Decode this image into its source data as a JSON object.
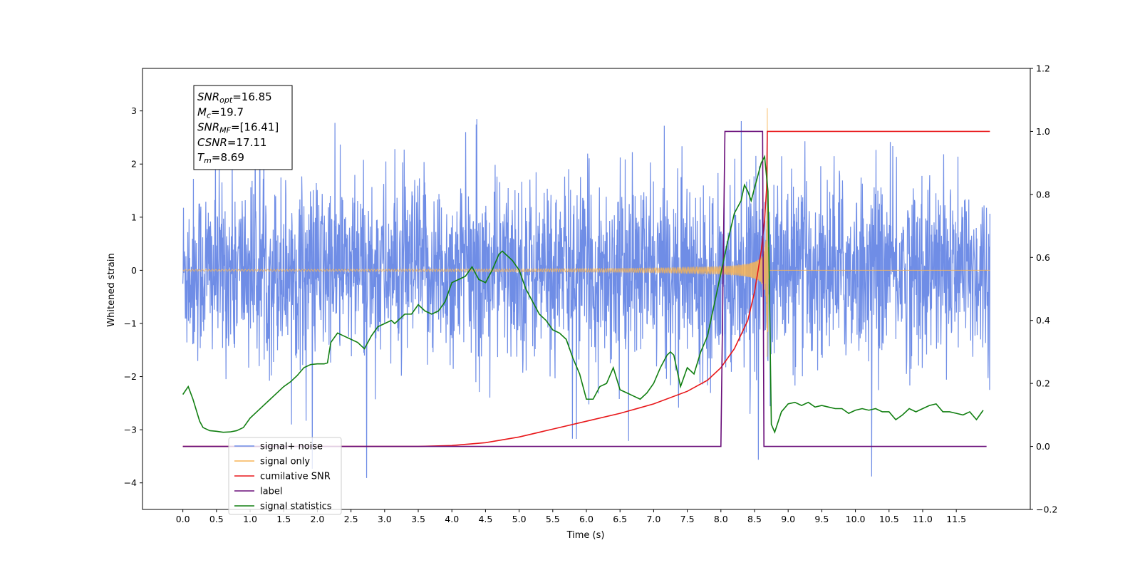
{
  "chart_data": {
    "type": "line",
    "xlabel": "Time (s)",
    "ylabel": "Whitened strain",
    "xlim": [
      -0.6,
      12.6
    ],
    "ylim": [
      -4.5,
      3.8
    ],
    "y2lim": [
      -0.2,
      1.2
    ],
    "x_ticks": [
      "0.0",
      "0.5",
      "1.0",
      "1.5",
      "2.0",
      "2.5",
      "3.0",
      "3.5",
      "4.0",
      "4.5",
      "5.0",
      "5.5",
      "6.0",
      "6.5",
      "7.0",
      "7.5",
      "8.0",
      "8.5",
      "9.0",
      "9.5",
      "10.0",
      "10.5",
      "11.0",
      "11.5"
    ],
    "y_ticks": [
      "3",
      "2",
      "1",
      "0",
      "−1",
      "−2",
      "−3",
      "−4"
    ],
    "y2_ticks": [
      "1.2",
      "1.0",
      "0.8",
      "0.6",
      "0.4",
      "0.2",
      "0.0",
      "−0.2"
    ],
    "legend_position": "lower-left",
    "annotation": [
      {
        "base": "SNR",
        "sub": "opt",
        "value": "=16.85"
      },
      {
        "base": "M",
        "sub": "c",
        "value": "=19.7"
      },
      {
        "base": "SNR",
        "sub": "MF",
        "value": "=[16.41]"
      },
      {
        "base": "CSNR",
        "sub": "",
        "value": "=17.11"
      },
      {
        "base": "T",
        "sub": "m",
        "value": "=8.69"
      }
    ],
    "series": [
      {
        "name": "signal+ noise",
        "color": "#6f8de6",
        "axis": "left",
        "kind": "noise",
        "noise_sigma": 0.85,
        "t_range": [
          0,
          12
        ]
      },
      {
        "name": "signal only",
        "color": "#f7b455",
        "axis": "left",
        "kind": "chirp",
        "merger_time": 8.69,
        "peak_amplitude": 3.05
      },
      {
        "name": "cumilative SNR",
        "color": "#e8171a",
        "axis": "right",
        "x": [
          0,
          3.5,
          4.0,
          4.5,
          5.0,
          5.5,
          6.0,
          6.5,
          7.0,
          7.5,
          7.8,
          8.0,
          8.2,
          8.4,
          8.5,
          8.6,
          8.65,
          8.68,
          8.69,
          8.7,
          12
        ],
        "values": [
          0,
          0,
          0.003,
          0.012,
          0.03,
          0.055,
          0.08,
          0.105,
          0.135,
          0.175,
          0.21,
          0.25,
          0.31,
          0.4,
          0.49,
          0.62,
          0.72,
          0.82,
          1.0,
          1.0,
          1.0
        ]
      },
      {
        "name": "label",
        "color": "#6a0f7a",
        "axis": "right",
        "x": [
          0,
          8.0,
          8.06,
          8.62,
          8.64,
          11.95
        ],
        "values": [
          0,
          0,
          1,
          1,
          0,
          0
        ]
      },
      {
        "name": "signal statistics",
        "color": "#117f11",
        "axis": "right",
        "x": [
          0,
          0.08,
          0.15,
          0.25,
          0.3,
          0.4,
          0.5,
          0.6,
          0.7,
          0.8,
          0.9,
          1.0,
          1.1,
          1.2,
          1.3,
          1.4,
          1.5,
          1.6,
          1.7,
          1.8,
          1.9,
          2.0,
          2.1,
          2.15,
          2.2,
          2.3,
          2.4,
          2.5,
          2.6,
          2.7,
          2.8,
          2.9,
          3.0,
          3.1,
          3.15,
          3.2,
          3.3,
          3.4,
          3.5,
          3.6,
          3.7,
          3.8,
          3.9,
          4.0,
          4.1,
          4.2,
          4.3,
          4.4,
          4.5,
          4.6,
          4.7,
          4.75,
          4.8,
          4.9,
          5.0,
          5.1,
          5.2,
          5.3,
          5.4,
          5.5,
          5.6,
          5.7,
          5.8,
          5.9,
          6.0,
          6.1,
          6.2,
          6.3,
          6.4,
          6.5,
          6.6,
          6.7,
          6.8,
          6.9,
          7.0,
          7.1,
          7.2,
          7.25,
          7.3,
          7.35,
          7.4,
          7.5,
          7.6,
          7.7,
          7.8,
          7.9,
          8.0,
          8.1,
          8.2,
          8.3,
          8.35,
          8.4,
          8.45,
          8.5,
          8.55,
          8.6,
          8.65,
          8.7,
          8.75,
          8.8,
          8.9,
          9.0,
          9.1,
          9.2,
          9.3,
          9.4,
          9.5,
          9.6,
          9.7,
          9.8,
          9.9,
          10.0,
          10.1,
          10.2,
          10.3,
          10.4,
          10.5,
          10.6,
          10.7,
          10.8,
          10.9,
          11.0,
          11.1,
          11.2,
          11.3,
          11.4,
          11.5,
          11.6,
          11.7,
          11.8,
          11.9
        ],
        "values": [
          0.165,
          0.19,
          0.15,
          0.08,
          0.06,
          0.05,
          0.048,
          0.045,
          0.046,
          0.05,
          0.06,
          0.09,
          0.11,
          0.13,
          0.15,
          0.17,
          0.19,
          0.205,
          0.225,
          0.25,
          0.26,
          0.262,
          0.262,
          0.265,
          0.33,
          0.36,
          0.35,
          0.34,
          0.33,
          0.31,
          0.35,
          0.38,
          0.39,
          0.4,
          0.39,
          0.4,
          0.42,
          0.42,
          0.45,
          0.43,
          0.42,
          0.43,
          0.46,
          0.52,
          0.53,
          0.54,
          0.57,
          0.53,
          0.52,
          0.56,
          0.61,
          0.62,
          0.61,
          0.59,
          0.56,
          0.5,
          0.46,
          0.42,
          0.4,
          0.37,
          0.36,
          0.34,
          0.28,
          0.23,
          0.15,
          0.15,
          0.19,
          0.2,
          0.25,
          0.18,
          0.17,
          0.16,
          0.15,
          0.17,
          0.2,
          0.25,
          0.29,
          0.3,
          0.29,
          0.24,
          0.19,
          0.25,
          0.23,
          0.3,
          0.35,
          0.45,
          0.55,
          0.65,
          0.74,
          0.78,
          0.83,
          0.81,
          0.78,
          0.82,
          0.86,
          0.9,
          0.92,
          0.81,
          0.07,
          0.045,
          0.11,
          0.135,
          0.14,
          0.13,
          0.14,
          0.125,
          0.13,
          0.125,
          0.12,
          0.12,
          0.105,
          0.115,
          0.12,
          0.115,
          0.12,
          0.11,
          0.11,
          0.085,
          0.1,
          0.12,
          0.11,
          0.12,
          0.13,
          0.135,
          0.11,
          0.11,
          0.105,
          0.1,
          0.11,
          0.085,
          0.115
        ]
      }
    ]
  }
}
